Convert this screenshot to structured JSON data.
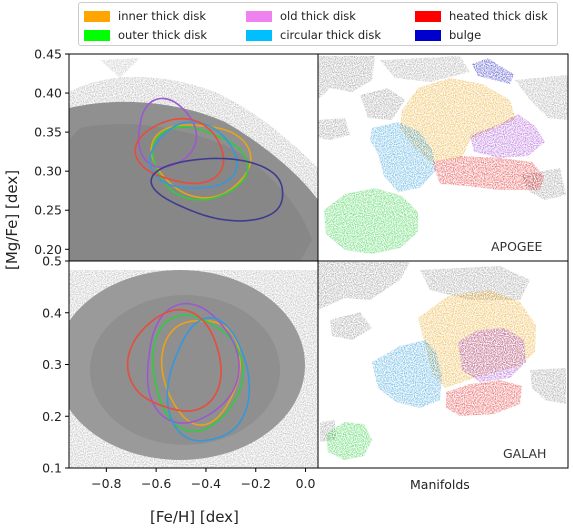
{
  "legend": {
    "items": [
      {
        "label": "inner thick disk",
        "color": "#ffa500"
      },
      {
        "label": "outer thick disk",
        "color": "#00ff00"
      },
      {
        "label": "old thick disk",
        "color": "#ee82ee"
      },
      {
        "label": "circular thick disk",
        "color": "#00bfff"
      },
      {
        "label": "heated thick disk",
        "color": "#ff0000"
      },
      {
        "label": "bulge",
        "color": "#0000cd"
      }
    ]
  },
  "axes": {
    "ylabel": "[Mg/Fe] [dex]",
    "xlabel": "[Fe/H] [dex]",
    "manifolds_label": "Manifolds",
    "survey_top": "APOGEE",
    "survey_bottom": "GALAH"
  },
  "chart_data": [
    {
      "type": "scatter",
      "panel": "APOGEE chemical plane",
      "xlim": [
        -0.95,
        0.05
      ],
      "ylim": [
        0.185,
        0.45
      ],
      "x_ticks": [
        "−0.8",
        "−0.6",
        "−0.4",
        "−0.2",
        "0.0"
      ],
      "y_ticks": [
        "0.20",
        "0.25",
        "0.30",
        "0.35",
        "0.40",
        "0.45"
      ],
      "background": "gray density of all stars",
      "contours": [
        {
          "group": "inner thick disk",
          "color": "#e8a317",
          "cx": -0.42,
          "cy": 0.315,
          "rx": 0.19,
          "ry": 0.048,
          "tilt": -0.9
        },
        {
          "group": "outer thick disk",
          "color": "#2ecc40",
          "cx": -0.43,
          "cy": 0.31,
          "rx": 0.19,
          "ry": 0.045,
          "tilt": -0.9
        },
        {
          "group": "old thick disk",
          "color": "#9b59d0",
          "cx": -0.56,
          "cy": 0.348,
          "rx": 0.12,
          "ry": 0.042,
          "tilt": -0.3
        },
        {
          "group": "circular thick disk",
          "color": "#3498db",
          "cx": -0.45,
          "cy": 0.318,
          "rx": 0.17,
          "ry": 0.043,
          "tilt": -0.85
        },
        {
          "group": "heated thick disk",
          "color": "#e74c3c",
          "cx": -0.5,
          "cy": 0.325,
          "rx": 0.17,
          "ry": 0.042,
          "tilt": -0.6
        },
        {
          "group": "bulge",
          "color": "#3d3d8f",
          "cx": -0.34,
          "cy": 0.278,
          "rx": 0.27,
          "ry": 0.038,
          "tilt": -1.3
        }
      ]
    },
    {
      "type": "scatter",
      "panel": "GALAH chemical plane",
      "xlim": [
        -0.95,
        0.05
      ],
      "ylim": [
        0.1,
        0.5
      ],
      "x_ticks": [
        "−0.8",
        "−0.6",
        "−0.4",
        "−0.2",
        "0.0"
      ],
      "y_ticks": [
        "0.1",
        "0.2",
        "0.3",
        "0.4",
        "0.5"
      ],
      "background": "gray density of all stars",
      "contours": [
        {
          "group": "inner thick disk",
          "color": "#e8a317",
          "cx": -0.42,
          "cy": 0.29,
          "rx": 0.15,
          "ry": 0.105,
          "tilt": 0
        },
        {
          "group": "outer thick disk",
          "color": "#2ecc40",
          "cx": -0.44,
          "cy": 0.285,
          "rx": 0.18,
          "ry": 0.11,
          "tilt": 0
        },
        {
          "group": "old thick disk",
          "color": "#9b59d0",
          "cx": -0.46,
          "cy": 0.3,
          "rx": 0.19,
          "ry": 0.11,
          "tilt": 0
        },
        {
          "group": "circular thick disk",
          "color": "#3498db",
          "cx": -0.39,
          "cy": 0.265,
          "rx": 0.16,
          "ry": 0.12,
          "tilt": 0
        },
        {
          "group": "heated thick disk",
          "color": "#e74c3c",
          "cx": -0.52,
          "cy": 0.305,
          "rx": 0.18,
          "ry": 0.1,
          "tilt": 0
        }
      ]
    },
    {
      "type": "scatter",
      "panel": "APOGEE manifold",
      "background": "gray manifold points",
      "groups": [
        "bulge",
        "inner thick disk",
        "old thick disk",
        "circular thick disk",
        "heated thick disk",
        "outer thick disk"
      ]
    },
    {
      "type": "scatter",
      "panel": "GALAH manifold",
      "background": "gray manifold points",
      "groups": [
        "inner thick disk",
        "old thick disk",
        "circular thick disk",
        "heated thick disk",
        "outer thick disk"
      ]
    }
  ]
}
